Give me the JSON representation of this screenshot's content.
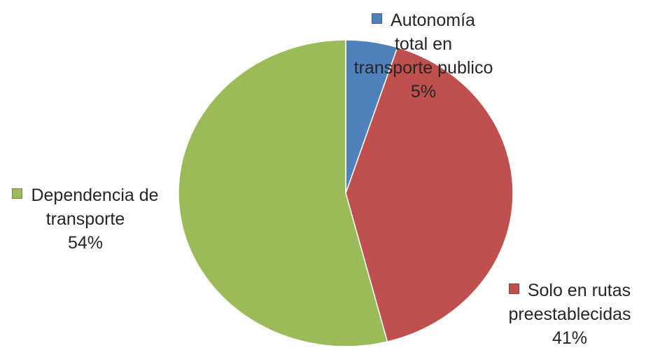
{
  "chart_data": {
    "type": "pie",
    "categories": [
      "Autonomía total en transporte publico",
      "Solo en rutas preestablecidas",
      "Dependencia de transporte"
    ],
    "values": [
      5,
      41,
      54
    ],
    "value_labels": [
      "5%",
      "41%",
      "54%"
    ],
    "colors": [
      "#4f81bd",
      "#c0504d",
      "#9bbb59"
    ]
  }
}
